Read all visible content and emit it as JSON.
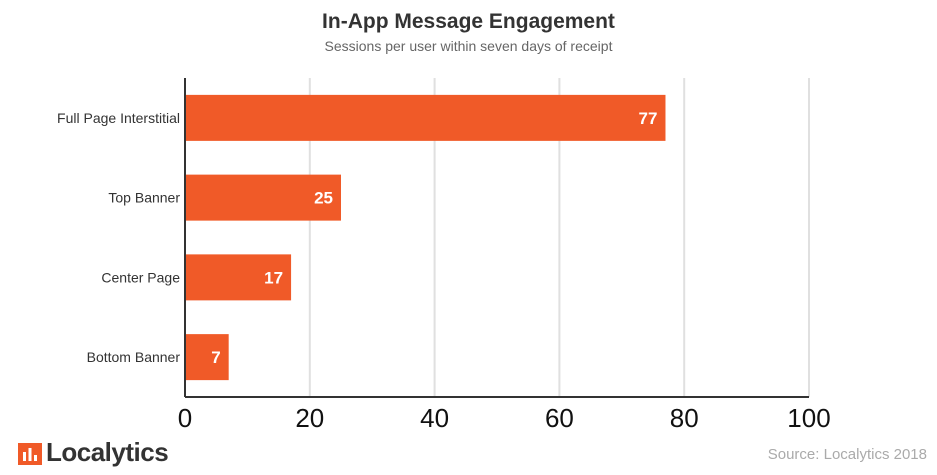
{
  "chart_data": {
    "type": "bar",
    "orientation": "horizontal",
    "title": "In-App Message Engagement",
    "subtitle": "Sessions per user within seven days of receipt",
    "categories": [
      "Full Page Interstitial",
      "Top Banner",
      "Center Page",
      "Bottom Banner"
    ],
    "values": [
      77,
      25,
      17,
      7
    ],
    "data_labels": [
      "77",
      "25",
      "17",
      "7"
    ],
    "xlim": [
      0,
      100
    ],
    "xticks": [
      "0",
      "20",
      "40",
      "60",
      "80",
      "100"
    ],
    "grid": true,
    "bar_color": "#f05a28"
  },
  "footer": {
    "logo_text": "Localytics",
    "source": "Source: Localytics 2018"
  },
  "colors": {
    "accent": "#f05a28",
    "gridline": "#e0e0e0",
    "axis": "#333333"
  }
}
